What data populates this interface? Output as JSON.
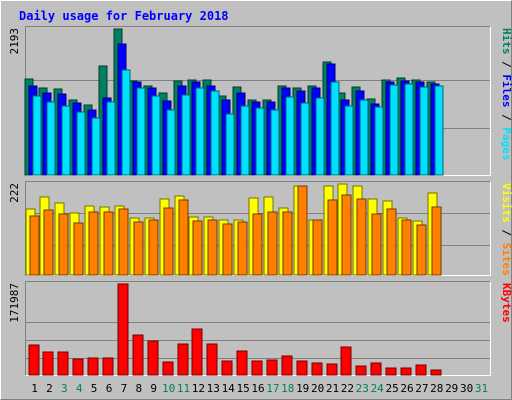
{
  "chart_data": {
    "type": "bar",
    "title": "Daily usage for February 2018",
    "x": [
      "1",
      "2",
      "3",
      "4",
      "5",
      "6",
      "7",
      "8",
      "9",
      "10",
      "11",
      "12",
      "13",
      "14",
      "15",
      "16",
      "17",
      "18",
      "19",
      "20",
      "21",
      "22",
      "23",
      "24",
      "25",
      "26",
      "27",
      "28",
      "29",
      "30",
      "31"
    ],
    "x_label_colors": [
      "#000000",
      "#000000",
      "#00805c",
      "#00805c",
      "#000000",
      "#000000",
      "#000000",
      "#000000",
      "#000000",
      "#00805c",
      "#00805c",
      "#000000",
      "#000000",
      "#000000",
      "#000000",
      "#000000",
      "#00805c",
      "#00805c",
      "#000000",
      "#000000",
      "#000000",
      "#000000",
      "#00805c",
      "#00805c",
      "#000000",
      "#000000",
      "#000000",
      "#000000",
      "#000000",
      "#000000",
      "#00805c"
    ],
    "panels": [
      {
        "name": "pages-files-hits",
        "y_max_label": "2193",
        "ylim": [
          0,
          2193
        ],
        "series": [
          {
            "name": "Hits",
            "color": "#008060",
            "values": [
              1440,
              1310,
              1290,
              1130,
              1050,
              1640,
              2193,
              1410,
              1330,
              1230,
              1410,
              1430,
              1420,
              1180,
              1320,
              1130,
              1130,
              1340,
              1310,
              1330,
              1690,
              1230,
              1320,
              1140,
              1430,
              1450,
              1420,
              1390,
              null,
              null,
              null
            ]
          },
          {
            "name": "Files",
            "color": "#0000ff",
            "values": [
              1340,
              1230,
              1220,
              1080,
              980,
              1150,
              1970,
              1390,
              1300,
              1110,
              1330,
              1390,
              1330,
              1130,
              1230,
              1100,
              1090,
              1300,
              1260,
              1300,
              1660,
              1120,
              1260,
              1070,
              1390,
              1410,
              1400,
              1370,
              null,
              null,
              null
            ]
          },
          {
            "name": "Pages",
            "color": "#00e0ff",
            "values": [
              1190,
              1090,
              1040,
              950,
              850,
              1090,
              1580,
              1310,
              1180,
              980,
              1200,
              1300,
              1260,
              910,
              1030,
              1010,
              980,
              1170,
              1080,
              1160,
              1390,
              1030,
              1120,
              1020,
              1350,
              1370,
              1320,
              1330,
              null,
              null,
              null
            ]
          }
        ],
        "legend": [
          "Pages",
          "Files",
          "Hits"
        ]
      },
      {
        "name": "sites-visits",
        "y_max_label": "222",
        "ylim": [
          0,
          222
        ],
        "series": [
          {
            "name": "Visits",
            "color": "#ffff00",
            "values": [
              160,
              190,
              175,
              152,
              168,
              165,
              168,
              140,
              140,
              185,
              192,
              142,
              142,
              135,
              134,
              188,
              190,
              164,
              218,
              135,
              216,
              222,
              216,
              185,
              180,
              140,
              132,
              200,
              null,
              null,
              null
            ]
          },
          {
            "name": "Sites",
            "color": "#ff8000",
            "values": [
              144,
              159,
              149,
              128,
              153,
              154,
              162,
              130,
              133,
              164,
              184,
              131,
              133,
              125,
              129,
              150,
              153,
              154,
              216,
              133,
              183,
              194,
              185,
              150,
              160,
              133,
              121,
              166,
              null,
              null,
              null
            ]
          }
        ],
        "legend": [
          "Sites",
          "Visits"
        ]
      },
      {
        "name": "kbytes",
        "y_max_label": "171987",
        "ylim": [
          0,
          171987
        ],
        "series": [
          {
            "name": "KBytes",
            "color": "#ff0000",
            "values": [
              57000,
              44000,
              44000,
              31000,
              33000,
              33000,
              171987,
              75000,
              64000,
              24000,
              58000,
              87000,
              59000,
              27000,
              45000,
              27000,
              29000,
              35000,
              27000,
              23000,
              20000,
              52000,
              17000,
              23000,
              14000,
              14000,
              18000,
              10000,
              null,
              null,
              null
            ]
          }
        ],
        "legend": [
          "KBytes"
        ]
      }
    ]
  }
}
